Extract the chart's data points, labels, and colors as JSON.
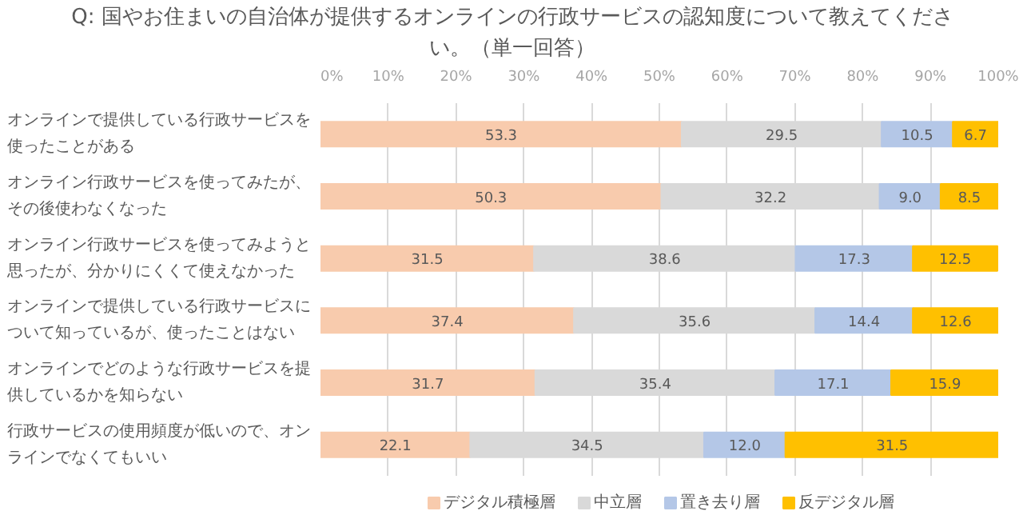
{
  "chart_data": {
    "type": "bar",
    "orientation": "horizontal",
    "stacked": true,
    "title": "Q: 国やお住まいの自治体が提供するオンラインの行政サービスの認知度について教えてください。（単一回答）",
    "categories": [
      "オンラインで提供している行政サービスを使ったことがある",
      "オンライン行政サービスを使ってみたが、その後使わなくなった",
      "オンライン行政サービスを使ってみようと思ったが、分かりにくくて使えなかった",
      "オンラインで提供している行政サービスについて知っているが、使ったことはない",
      "オンラインでどのような行政サービスを提供しているかを知らない",
      "行政サービスの使用頻度が低いので、オンラインでなくてもいい"
    ],
    "series": [
      {
        "name": "デジタル積極層",
        "color": "#f8cbad",
        "values": [
          53.3,
          50.3,
          31.5,
          37.4,
          31.7,
          22.1
        ],
        "value_labels": [
          "53.3",
          "50.3",
          "31.5",
          "37.4",
          "31.7",
          "22.1"
        ]
      },
      {
        "name": "中立層",
        "color": "#d9d9d9",
        "values": [
          29.5,
          32.2,
          38.6,
          35.6,
          35.4,
          34.5
        ],
        "value_labels": [
          "29.5",
          "32.2",
          "38.6",
          "35.6",
          "35.4",
          "34.5"
        ]
      },
      {
        "name": "置き去り層",
        "color": "#b4c7e7",
        "values": [
          10.5,
          9.0,
          17.3,
          14.4,
          17.1,
          12.0
        ],
        "value_labels": [
          "10.5",
          "9.0",
          "17.3",
          "14.4",
          "17.1",
          "12.0"
        ]
      },
      {
        "name": "反デジタル層",
        "color": "#ffc000",
        "values": [
          6.7,
          8.5,
          12.5,
          12.6,
          15.9,
          31.5
        ],
        "value_labels": [
          "6.7",
          "8.5",
          "12.5",
          "12.6",
          "15.9",
          "31.5"
        ]
      }
    ],
    "xlim": [
      0,
      100
    ],
    "xticks": [
      {
        "value": 0,
        "label": "0%"
      },
      {
        "value": 10,
        "label": "10%"
      },
      {
        "value": 20,
        "label": "20%"
      },
      {
        "value": 30,
        "label": "30%"
      },
      {
        "value": 40,
        "label": "40%"
      },
      {
        "value": 50,
        "label": "50%"
      },
      {
        "value": 60,
        "label": "60%"
      },
      {
        "value": 70,
        "label": "70%"
      },
      {
        "value": 80,
        "label": "80%"
      },
      {
        "value": 90,
        "label": "90%"
      },
      {
        "value": 100,
        "label": "100%"
      }
    ],
    "grid": "x",
    "legend": "bottom"
  }
}
